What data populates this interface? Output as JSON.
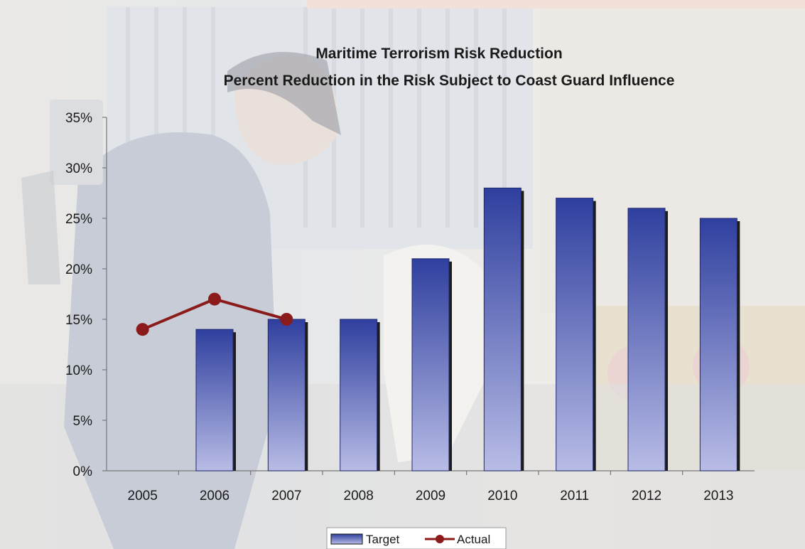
{
  "chart_data": {
    "type": "bar",
    "title": "Maritime Terrorism Risk Reduction",
    "subtitle": "Percent Reduction in the Risk Subject to Coast Guard Influence",
    "categories": [
      "2005",
      "2006",
      "2007",
      "2008",
      "2009",
      "2010",
      "2011",
      "2012",
      "2013"
    ],
    "ylim": [
      0,
      35
    ],
    "y_ticks": [
      "0%",
      "5%",
      "10%",
      "15%",
      "20%",
      "25%",
      "30%",
      "35%"
    ],
    "y_tick_values": [
      0,
      5,
      10,
      15,
      20,
      25,
      30,
      35
    ],
    "grid": false,
    "legend_position": "bottom",
    "series": [
      {
        "name": "Target",
        "kind": "bar",
        "color": "#3b4aa6",
        "values": [
          null,
          14,
          15,
          15,
          21,
          28,
          27,
          26,
          25
        ]
      },
      {
        "name": "Actual",
        "kind": "line",
        "color": "#8b1a1a",
        "values": [
          14,
          17,
          15,
          null,
          null,
          null,
          null,
          null,
          null
        ]
      }
    ]
  },
  "colors": {
    "bar_top": "#2f3f9e",
    "bar_bottom": "#b8bce6",
    "actual_line": "#8b1a1a",
    "top_band": "#f2e1d8"
  }
}
